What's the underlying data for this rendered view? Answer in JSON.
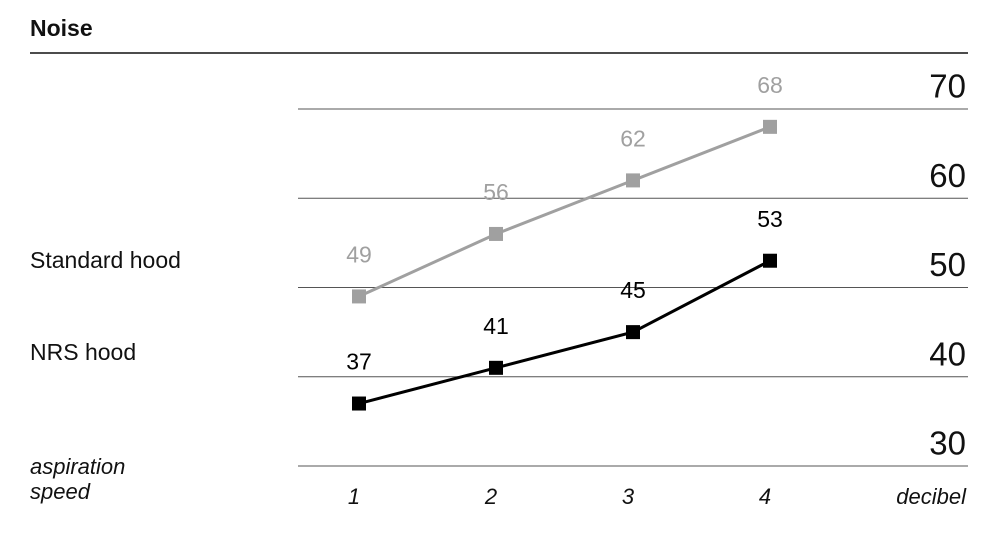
{
  "chart_data": {
    "type": "line",
    "title": "Noise",
    "x_label": "aspiration speed",
    "y_label": "decibel",
    "categories": [
      "1",
      "2",
      "3",
      "4"
    ],
    "series": [
      {
        "name": "Standard hood",
        "color": "#a0a0a0",
        "values": [
          49,
          56,
          62,
          68
        ]
      },
      {
        "name": "NRS hood",
        "color": "#000000",
        "values": [
          37,
          41,
          45,
          53
        ]
      }
    ],
    "ylim": [
      30,
      70
    ],
    "yticks": [
      30,
      40,
      50,
      60,
      70
    ],
    "grid": true
  }
}
